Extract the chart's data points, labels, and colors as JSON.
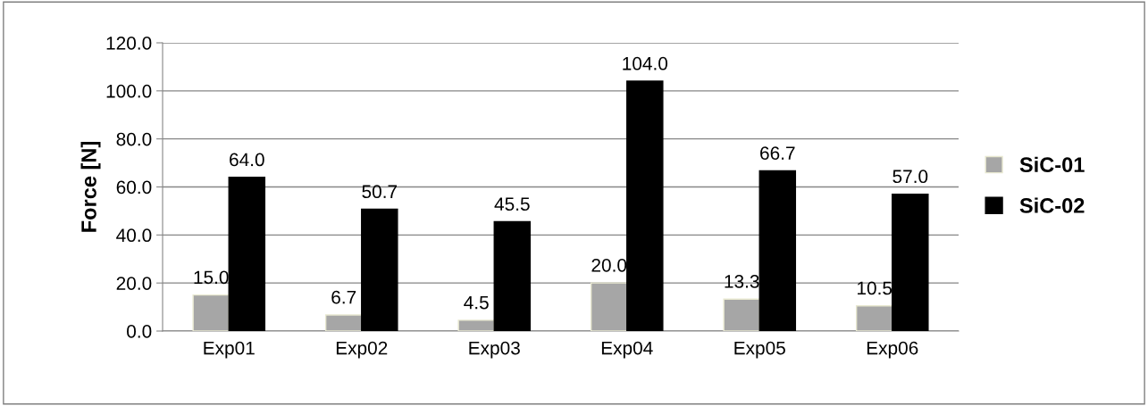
{
  "chart_data": {
    "type": "bar",
    "ylabel": "Force [N]",
    "categories": [
      "Exp01",
      "Exp02",
      "Exp03",
      "Exp04",
      "Exp05",
      "Exp06"
    ],
    "series": [
      {
        "name": "SiC-01",
        "color": "#a6a6a6",
        "values": [
          15.0,
          6.7,
          4.5,
          20.0,
          13.3,
          10.5
        ],
        "value_labels": [
          "15.0",
          "6.7",
          "4.5",
          "20.0",
          "13.3",
          "10.5"
        ]
      },
      {
        "name": "SiC-02",
        "color": "#000000",
        "values": [
          64.0,
          50.7,
          45.5,
          104.0,
          66.7,
          57.0
        ],
        "value_labels": [
          "64.0",
          "50.7",
          "45.5",
          "104.0",
          "66.7",
          "57.0"
        ]
      }
    ],
    "ylim": [
      0,
      120
    ],
    "yticks": [
      {
        "value": 0,
        "label": "0.0"
      },
      {
        "value": 20,
        "label": "20.0"
      },
      {
        "value": 40,
        "label": "40.0"
      },
      {
        "value": 60,
        "label": "60.0"
      },
      {
        "value": 80,
        "label": "80.0"
      },
      {
        "value": 100,
        "label": "100.0"
      },
      {
        "value": 120,
        "label": "120.0"
      }
    ],
    "grid": "y",
    "legend": "right"
  }
}
